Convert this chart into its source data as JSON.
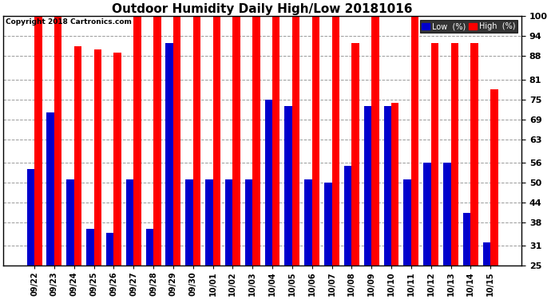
{
  "title": "Outdoor Humidity Daily High/Low 20181016",
  "copyright": "Copyright 2018 Cartronics.com",
  "categories": [
    "09/22",
    "09/23",
    "09/24",
    "09/25",
    "09/26",
    "09/27",
    "09/28",
    "09/29",
    "09/30",
    "10/01",
    "10/02",
    "10/03",
    "10/04",
    "10/05",
    "10/06",
    "10/07",
    "10/08",
    "10/09",
    "10/10",
    "10/11",
    "10/12",
    "10/13",
    "10/14",
    "10/15"
  ],
  "high_values": [
    100,
    100,
    91,
    90,
    89,
    100,
    100,
    100,
    100,
    100,
    100,
    100,
    100,
    100,
    100,
    100,
    92,
    100,
    74,
    100,
    92,
    92,
    92,
    78
  ],
  "low_values": [
    54,
    71,
    51,
    36,
    35,
    51,
    36,
    92,
    51,
    51,
    51,
    51,
    75,
    73,
    51,
    50,
    55,
    73,
    73,
    51,
    56,
    56,
    41,
    32
  ],
  "bar_color_high": "#ff0000",
  "bar_color_low": "#0000cc",
  "background_color": "#ffffff",
  "grid_color": "#999999",
  "ylim_low": 25,
  "ylim_high": 100,
  "yticks": [
    25,
    31,
    38,
    44,
    50,
    56,
    63,
    69,
    75,
    81,
    88,
    94,
    100
  ],
  "title_fontsize": 11,
  "tick_fontsize": 8,
  "xlabel_fontsize": 7,
  "legend_low_label": "Low  (%)",
  "legend_high_label": "High  (%)"
}
